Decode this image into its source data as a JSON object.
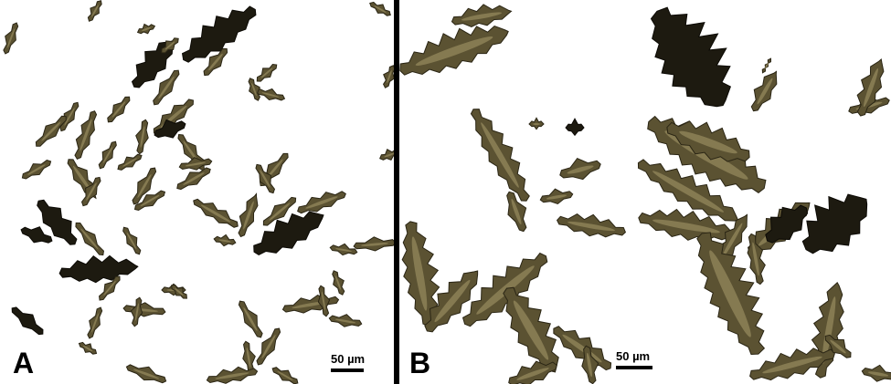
{
  "figure": {
    "panel_a": {
      "letter": "A",
      "scale_label": "50 µm"
    },
    "panel_b": {
      "letter": "B",
      "scale_label": "50 µm"
    },
    "colors": {
      "background": "#ffffff",
      "divider": "#000000",
      "sclerite_dark": "#1d1a10",
      "sclerite_mid": "#5b5232",
      "sclerite_light": "#a79a6b"
    }
  }
}
